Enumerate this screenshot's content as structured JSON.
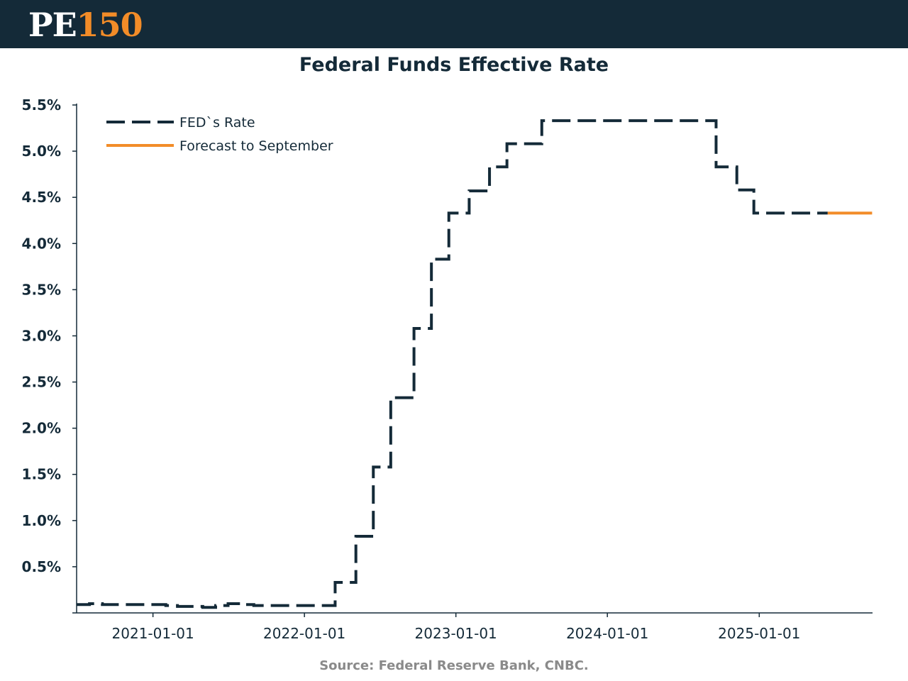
{
  "header": {
    "logo_text_pe": "PE",
    "logo_text_num": "150",
    "background_color": "#142a38",
    "accent_color": "#f28c28"
  },
  "footer": {
    "source": "Source: Federal Reserve Bank, CNBC."
  },
  "chart_data": {
    "type": "line",
    "title": "Federal Funds Effective Rate",
    "xlabel": "",
    "ylabel": "",
    "x_axis": {
      "type": "date",
      "range": [
        "2020-07-01",
        "2025-10-01"
      ],
      "tick_labels": [
        "2021-01-01",
        "2022-01-01",
        "2023-01-01",
        "2024-01-01",
        "2025-01-01"
      ]
    },
    "y_axis": {
      "range": [
        0.0,
        5.5
      ],
      "tick_labels": [
        "0.5%",
        "1.0%",
        "1.5%",
        "2.0%",
        "2.5%",
        "3.0%",
        "3.5%",
        "4.0%",
        "4.5%",
        "5.0%",
        "5.5%"
      ],
      "tick_values": [
        0.5,
        1.0,
        1.5,
        2.0,
        2.5,
        3.0,
        3.5,
        4.0,
        4.5,
        5.0,
        5.5
      ]
    },
    "grid": false,
    "legend_position": "top-left",
    "series": [
      {
        "name": "FED`s Rate",
        "style": "dashed",
        "color": "#142a38",
        "step": true,
        "points": [
          {
            "x": "2020-07-01",
            "y": 0.09
          },
          {
            "x": "2020-08-01",
            "y": 0.1
          },
          {
            "x": "2020-09-01",
            "y": 0.09
          },
          {
            "x": "2020-10-01",
            "y": 0.09
          },
          {
            "x": "2021-01-01",
            "y": 0.09
          },
          {
            "x": "2021-02-01",
            "y": 0.08
          },
          {
            "x": "2021-03-01",
            "y": 0.07
          },
          {
            "x": "2021-05-01",
            "y": 0.06
          },
          {
            "x": "2021-06-01",
            "y": 0.08
          },
          {
            "x": "2021-07-01",
            "y": 0.1
          },
          {
            "x": "2021-08-01",
            "y": 0.09
          },
          {
            "x": "2021-09-01",
            "y": 0.08
          },
          {
            "x": "2022-02-01",
            "y": 0.08
          },
          {
            "x": "2022-03-16",
            "y": 0.33
          },
          {
            "x": "2022-05-05",
            "y": 0.83
          },
          {
            "x": "2022-06-16",
            "y": 1.58
          },
          {
            "x": "2022-07-28",
            "y": 2.33
          },
          {
            "x": "2022-09-22",
            "y": 3.08
          },
          {
            "x": "2022-11-03",
            "y": 3.83
          },
          {
            "x": "2022-12-15",
            "y": 4.33
          },
          {
            "x": "2023-02-02",
            "y": 4.57
          },
          {
            "x": "2023-03-23",
            "y": 4.83
          },
          {
            "x": "2023-05-04",
            "y": 5.08
          },
          {
            "x": "2023-07-27",
            "y": 5.33
          },
          {
            "x": "2024-09-19",
            "y": 4.83
          },
          {
            "x": "2024-11-08",
            "y": 4.58
          },
          {
            "x": "2024-12-19",
            "y": 4.33
          },
          {
            "x": "2025-06-15",
            "y": 4.33
          }
        ]
      },
      {
        "name": "Forecast to September",
        "style": "solid",
        "color": "#f28c28",
        "step": false,
        "points": [
          {
            "x": "2025-06-15",
            "y": 4.33
          },
          {
            "x": "2025-09-30",
            "y": 4.33
          }
        ]
      }
    ]
  }
}
